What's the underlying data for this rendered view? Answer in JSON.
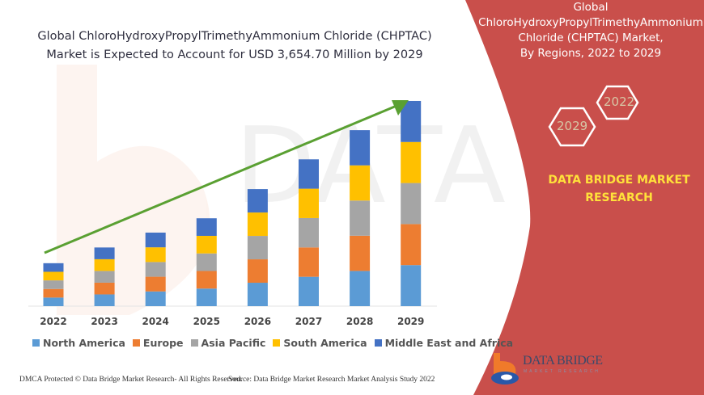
{
  "title": {
    "line1": "Global ChloroHydroxyPropylTrimethyAmmonium Chloride (CHPTAC)",
    "line2": "Market is Expected to Account for USD 3,654.70 Million by 2029"
  },
  "side_panel": {
    "title_lines": [
      "Global",
      "ChloroHydroxyPropylTrimethyAmmonium",
      "Chloride (CHPTAC) Market,",
      "By Regions, 2022 to 2029"
    ],
    "hexagons": [
      "2022",
      "2029"
    ],
    "brand_lines": [
      "DATA BRIDGE MARKET",
      "RESEARCH"
    ],
    "logo_text": "DATA BRIDGE",
    "logo_subtext": "MARKET RESEARCH",
    "panel_color": "#c94f4b",
    "brand_color": "#ffe13a"
  },
  "footer": {
    "left": "DMCA Protected © Data Bridge Market Research- All Rights Reserved.",
    "right": "Source: Data Bridge Market Research Market Analysis Study 2022"
  },
  "chart_data": {
    "type": "bar",
    "stacked": true,
    "title": "Global ChloroHydroxyPropylTrimethyAmmonium Chloride (CHPTAC) Market is Expected to Account for USD 3,654.70 Million by 2029",
    "xlabel": "",
    "ylabel": "",
    "grid": false,
    "legend_position": "bottom",
    "trend_arrow": true,
    "categories": [
      "2022",
      "2023",
      "2024",
      "2025",
      "2026",
      "2027",
      "2028",
      "2029"
    ],
    "series": [
      {
        "name": "North America",
        "color": "#5b9bd5",
        "values": [
          153,
          209,
          262,
          313,
          417,
          523,
          627,
          731
        ]
      },
      {
        "name": "Europe",
        "color": "#ed7d31",
        "values": [
          153,
          209,
          262,
          313,
          417,
          523,
          627,
          731
        ]
      },
      {
        "name": "Asia Pacific",
        "color": "#a5a5a5",
        "values": [
          153,
          209,
          262,
          313,
          417,
          523,
          627,
          731
        ]
      },
      {
        "name": "South America",
        "color": "#ffc000",
        "values": [
          153,
          209,
          262,
          313,
          417,
          523,
          627,
          731
        ]
      },
      {
        "name": "Middle East and Africa",
        "color": "#4472c4",
        "values": [
          153,
          209,
          262,
          313,
          417,
          523,
          627,
          731
        ]
      }
    ],
    "ylim": [
      0,
      3700
    ]
  }
}
